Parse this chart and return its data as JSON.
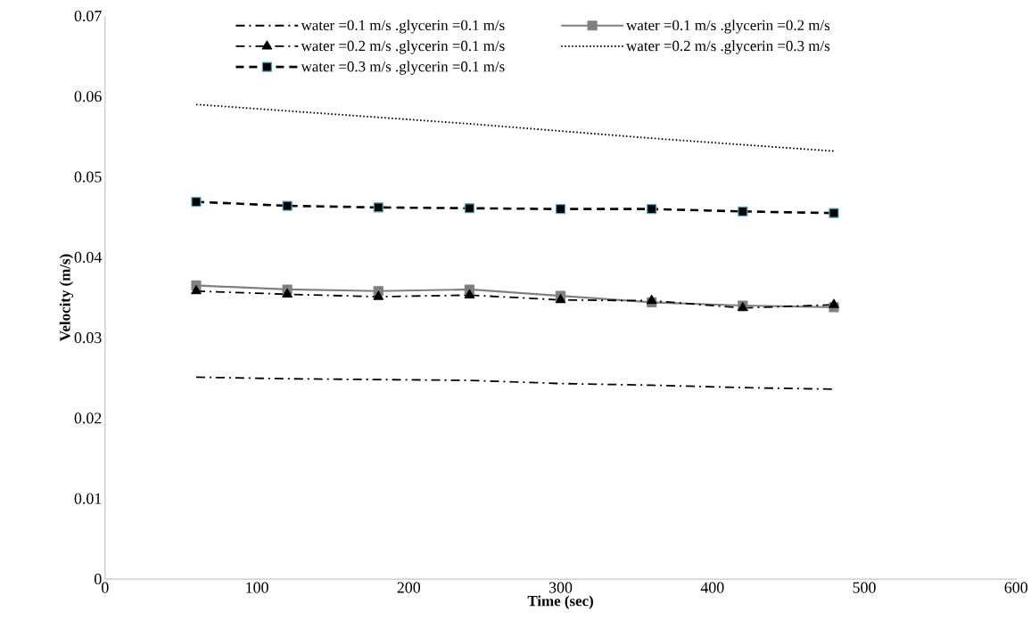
{
  "chart_data": {
    "type": "line",
    "xlabel": "Time (sec)",
    "ylabel": "Velocity (m/s)",
    "x": [
      60,
      120,
      180,
      240,
      300,
      360,
      420,
      480
    ],
    "xlim": [
      0,
      600
    ],
    "xticks": [
      0,
      100,
      200,
      300,
      400,
      500,
      600
    ],
    "ylim": [
      0,
      0.07
    ],
    "yticks": [
      0,
      0.01,
      0.02,
      0.03,
      0.04,
      0.05,
      0.06,
      0.07
    ],
    "legend": "top",
    "series": [
      {
        "name": "water =0.1 m/s .glycerin =0.1 m/s",
        "color": "#000000",
        "marker": "none",
        "line_style": "dashdot",
        "values": [
          0.0251,
          0.0249,
          0.0248,
          0.0247,
          0.0243,
          0.0241,
          0.0238,
          0.0236
        ]
      },
      {
        "name": "water =0.1 m/s .glycerin =0.2 m/s",
        "color": "#808080",
        "marker": "square",
        "line_style": "solid",
        "values": [
          0.0365,
          0.036,
          0.0358,
          0.036,
          0.0352,
          0.0344,
          0.034,
          0.0338
        ]
      },
      {
        "name": "water =0.2 m/s .glycerin =0.1 m/s",
        "color": "#000000",
        "marker": "triangle",
        "line_style": "dashdot",
        "values": [
          0.0358,
          0.0354,
          0.0351,
          0.0353,
          0.0347,
          0.0346,
          0.0337,
          0.0341
        ]
      },
      {
        "name": "water =0.2 m/s .glycerin =0.3 m/s",
        "color": "#000000",
        "marker": "none",
        "line_style": "dotted",
        "values": [
          0.059,
          0.0582,
          0.0574,
          0.0566,
          0.0557,
          0.0548,
          0.054,
          0.0532
        ]
      },
      {
        "name": "water =0.3 m/s .glycerin =0.1 m/s",
        "color": "#000000",
        "marker": "square",
        "line_style": "dashed",
        "values": [
          0.0469,
          0.0464,
          0.0462,
          0.0461,
          0.046,
          0.046,
          0.0457,
          0.0455
        ]
      }
    ]
  }
}
